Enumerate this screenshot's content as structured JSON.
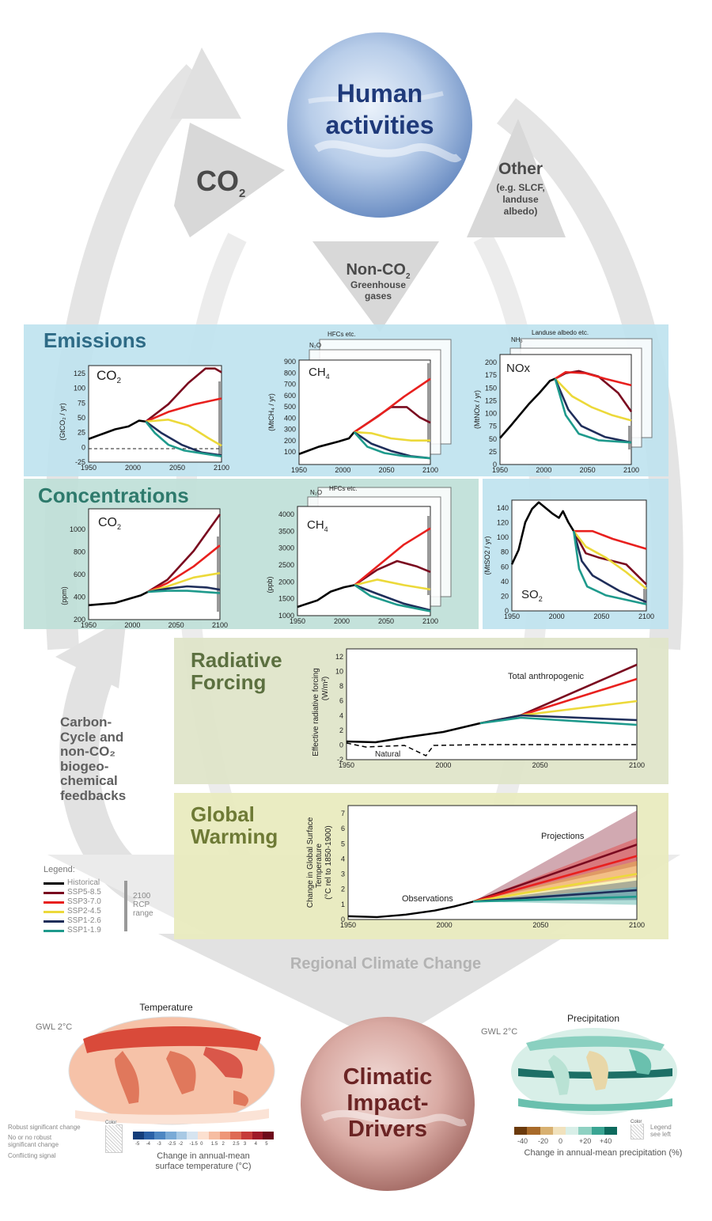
{
  "colors": {
    "historical": "#000000",
    "ssp585": "#7a0a1f",
    "ssp370": "#e8201e",
    "ssp245": "#ecd93a",
    "ssp126": "#1f2e5a",
    "ssp119": "#1e9a8c",
    "emissions_bg": "#bfe3ef",
    "concentrations_bg": "#bfe0d8",
    "forcing_bg": "#dfe5c9",
    "warming_bg": "#e9ebbf",
    "cycle_arrow": "#e0e0e0"
  },
  "top": {
    "human_activities": [
      "Human",
      "activities"
    ],
    "co2": "CO",
    "co2_sub": "2",
    "other": "Other",
    "other_note": [
      "(e.g. SLCF,",
      "landuse",
      "albedo)"
    ],
    "nonco2": "Non-CO",
    "nonco2_sub": "2",
    "nonco2_note": [
      "Greenhouse",
      "gases"
    ]
  },
  "emissions": {
    "title": "Emissions",
    "co2": {
      "label": "CO",
      "sub": "2",
      "ylabel": "(GtCO₂ / yr)",
      "yticks": [
        "125",
        "100",
        "75",
        "50",
        "25",
        "0",
        "-25"
      ],
      "xticks": [
        "1950",
        "2000",
        "2050",
        "2100"
      ]
    },
    "ch4": {
      "label": "CH",
      "sub": "4",
      "ylabel": "(MtCH₄ / yr)",
      "yticks": [
        "900",
        "800",
        "700",
        "600",
        "500",
        "400",
        "300",
        "200",
        "100"
      ],
      "xticks": [
        "1950",
        "2000",
        "2050",
        "2100"
      ],
      "back_labels": [
        "N₂O",
        "HFCs etc."
      ]
    },
    "nox": {
      "label": "NOx",
      "ylabel": "(MtNOx / yr)",
      "yticks": [
        "200",
        "175",
        "150",
        "125",
        "100",
        "75",
        "50",
        "25",
        "0"
      ],
      "xticks": [
        "1950",
        "2000",
        "2050",
        "2100"
      ],
      "back_labels": [
        "NH₃",
        "Landuse albedo etc."
      ]
    }
  },
  "concentrations": {
    "title": "Concentrations",
    "co2": {
      "label": "CO",
      "sub": "2",
      "ylabel": "(ppm)",
      "yticks": [
        "1000",
        "800",
        "600",
        "400",
        "200"
      ],
      "xticks": [
        "1950",
        "2000",
        "2050",
        "2100"
      ]
    },
    "ch4": {
      "label": "CH",
      "sub": "4",
      "ylabel": "(ppb)",
      "yticks": [
        "4000",
        "3500",
        "3000",
        "2500",
        "2000",
        "1500",
        "1000"
      ],
      "xticks": [
        "1950",
        "2000",
        "2050",
        "2100"
      ],
      "back_labels": [
        "N₂O",
        "HFCs etc."
      ]
    },
    "so2": {
      "label": "SO",
      "sub": "2",
      "ylabel": "(MtSO2 / yr)",
      "yticks": [
        "140",
        "120",
        "100",
        "80",
        "60",
        "40",
        "20",
        "0"
      ],
      "xticks": [
        "1950",
        "2000",
        "2050",
        "2100"
      ]
    }
  },
  "forcing": {
    "title": [
      "Radiative",
      "Forcing"
    ],
    "ylabel": [
      "Effective radiative forcing",
      "(W/m²)"
    ],
    "yticks": [
      "12",
      "10",
      "8",
      "6",
      "4",
      "2",
      "0",
      "-2"
    ],
    "xticks": [
      "1950",
      "2000",
      "2050",
      "2100"
    ],
    "annot_total": "Total anthropogenic",
    "annot_natural": "Natural"
  },
  "warming": {
    "title": [
      "Global",
      "Warming"
    ],
    "ylabel": [
      "Change in Global Surface",
      "Temperature",
      "(°C rel to 1850-1900)"
    ],
    "yticks": [
      "7",
      "6",
      "5",
      "4",
      "3",
      "2",
      "1",
      "0"
    ],
    "xticks": [
      "1950",
      "2000",
      "2050",
      "2100"
    ],
    "annot_proj": "Projections",
    "annot_obs": "Observations"
  },
  "feedback": [
    "Carbon-",
    "Cycle and",
    "non-CO₂",
    "biogeo-",
    "chemical",
    "feedbacks"
  ],
  "legend": {
    "title": "Legend:",
    "items": [
      "Historical",
      "SSP5-8.5",
      "SSP3-7.0",
      "SSP2-4.5",
      "SSP1-2.6",
      "SSP1-1.9"
    ],
    "range": [
      "2100",
      "RCP",
      "range"
    ]
  },
  "regional": {
    "title": "Regional Climate Change",
    "impact": [
      "Climatic",
      "Impact-",
      "Drivers"
    ],
    "temp_title": "Temperature",
    "temp_gwl": "GWL 2°C",
    "temp_scale": [
      "-5",
      "-4",
      "-3",
      "-2.5",
      "-2",
      "-1.5",
      "0",
      "1.5",
      "2",
      "2.5",
      "3",
      "4",
      "5"
    ],
    "temp_caption": [
      "Change in annual-mean",
      "surface temperature (°C)"
    ],
    "temp_notes": [
      "Robust significant change",
      "No or no robust",
      "significant change",
      "Conflicting signal"
    ],
    "color_label": "Color",
    "precip_title": "Precipitation",
    "precip_gwl": "GWL 2°C",
    "precip_scale": [
      "-40",
      "-20",
      "0",
      "+20",
      "+40"
    ],
    "precip_caption": "Change in annual-mean precipitation (%)",
    "precip_legend_note": [
      "Legend",
      "see left"
    ]
  }
}
